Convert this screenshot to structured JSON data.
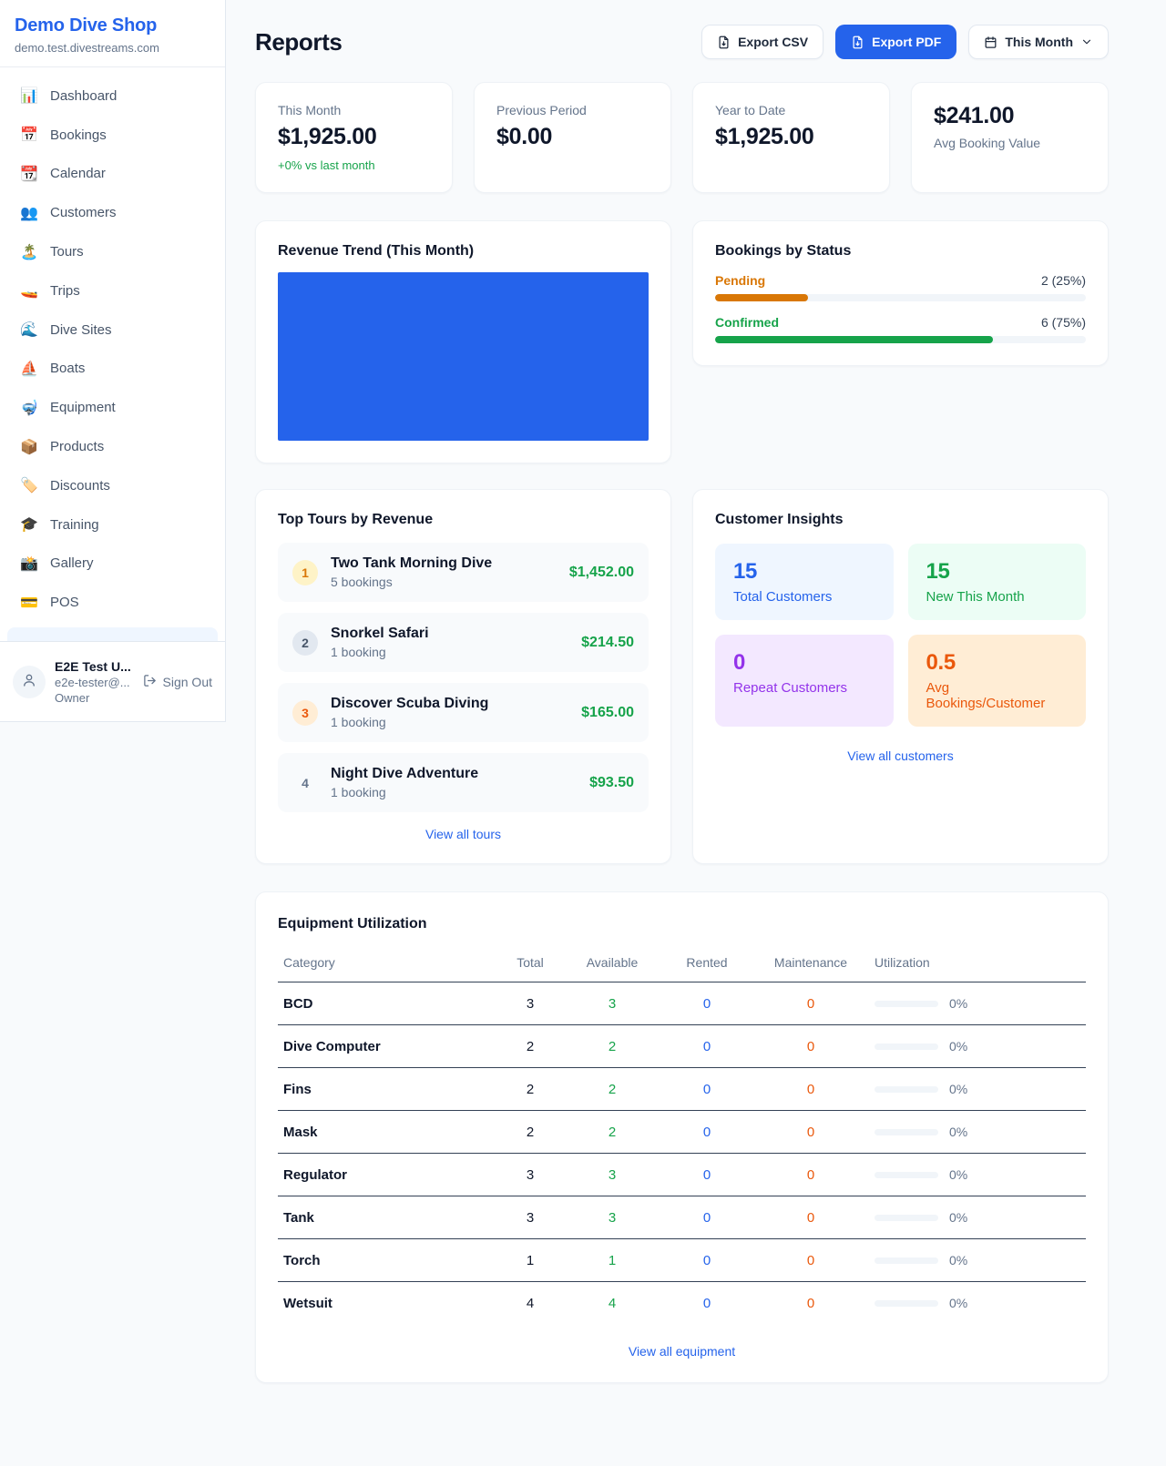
{
  "brand": {
    "name": "Demo Dive Shop",
    "domain": "demo.test.divestreams.com"
  },
  "sidebar": {
    "items": [
      {
        "label": "Dashboard",
        "icon": "📊",
        "icon_name": "bar-chart-icon"
      },
      {
        "label": "Bookings",
        "icon": "📅",
        "icon_name": "calendar-date-icon"
      },
      {
        "label": "Calendar",
        "icon": "📆",
        "icon_name": "tear-off-calendar-icon"
      },
      {
        "label": "Customers",
        "icon": "👥",
        "icon_name": "people-icon"
      },
      {
        "label": "Tours",
        "icon": "🏝️",
        "icon_name": "island-icon"
      },
      {
        "label": "Trips",
        "icon": "🚤",
        "icon_name": "speedboat-icon"
      },
      {
        "label": "Dive Sites",
        "icon": "🌊",
        "icon_name": "wave-icon"
      },
      {
        "label": "Boats",
        "icon": "⛵",
        "icon_name": "sailboat-icon"
      },
      {
        "label": "Equipment",
        "icon": "🤿",
        "icon_name": "diving-mask-icon"
      },
      {
        "label": "Products",
        "icon": "📦",
        "icon_name": "package-icon"
      },
      {
        "label": "Discounts",
        "icon": "🏷️",
        "icon_name": "tag-icon"
      },
      {
        "label": "Training",
        "icon": "🎓",
        "icon_name": "graduation-cap-icon"
      },
      {
        "label": "Gallery",
        "icon": "📸",
        "icon_name": "camera-icon"
      },
      {
        "label": "POS",
        "icon": "💳",
        "icon_name": "credit-card-icon"
      }
    ]
  },
  "user": {
    "name": "E2E Test U...",
    "email": "e2e-tester@...",
    "role": "Owner",
    "sign_out": "Sign Out"
  },
  "header": {
    "title": "Reports",
    "export_csv": "Export CSV",
    "export_pdf": "Export PDF",
    "period_selector": "This Month"
  },
  "stats": [
    {
      "label": "This Month",
      "value": "$1,925.00",
      "delta": "+0% vs last month",
      "value_first": false
    },
    {
      "label": "Previous Period",
      "value": "$0.00",
      "delta": "",
      "value_first": false
    },
    {
      "label": "Year to Date",
      "value": "$1,925.00",
      "delta": "",
      "value_first": false
    },
    {
      "label": "Avg Booking Value",
      "value": "$241.00",
      "delta": "",
      "value_first": true
    }
  ],
  "chart_data": {
    "type": "bar",
    "title": "Revenue Trend (This Month)",
    "categories": [
      "This Month"
    ],
    "series": [
      {
        "name": "Revenue",
        "values": [
          1925.0
        ]
      }
    ],
    "bar_color": "#2563eb",
    "xlabel": "",
    "ylabel": "",
    "axes_visible": false,
    "legend": false,
    "note": "single solid blue bar fills the entire plot area; no axis ticks, gridlines or labels are rendered"
  },
  "bookings_by_status": {
    "title": "Bookings by Status",
    "rows": [
      {
        "label": "Pending",
        "count": "2 (25%)",
        "pct": 25,
        "color": "#d97706"
      },
      {
        "label": "Confirmed",
        "count": "6 (75%)",
        "pct": 75,
        "color": "#16a34a"
      }
    ]
  },
  "top_tours": {
    "title": "Top Tours by Revenue",
    "view_all": "View all tours",
    "items": [
      {
        "rank": "1",
        "name": "Two Tank Morning Dive",
        "bookings": "5 bookings",
        "revenue": "$1,452.00",
        "rank_bg": "#fef3c7",
        "rank_fg": "#d97706"
      },
      {
        "rank": "2",
        "name": "Snorkel Safari",
        "bookings": "1 booking",
        "revenue": "$214.50",
        "rank_bg": "#e2e8f0",
        "rank_fg": "#475569"
      },
      {
        "rank": "3",
        "name": "Discover Scuba Diving",
        "bookings": "1 booking",
        "revenue": "$165.00",
        "rank_bg": "#ffedd5",
        "rank_fg": "#ea580c"
      },
      {
        "rank": "4",
        "name": "Night Dive Adventure",
        "bookings": "1 booking",
        "revenue": "$93.50",
        "rank_bg": "transparent",
        "rank_fg": "#64748b"
      }
    ]
  },
  "customer_insights": {
    "title": "Customer Insights",
    "view_all": "View all customers",
    "tiles": [
      {
        "value": "15",
        "label": "Total Customers",
        "bg": "#eff6ff",
        "fg": "#2563eb"
      },
      {
        "value": "15",
        "label": "New This Month",
        "bg": "#ecfdf5",
        "fg": "#16a34a"
      },
      {
        "value": "0",
        "label": "Repeat Customers",
        "bg": "#f3e8ff",
        "fg": "#9333ea"
      },
      {
        "value": "0.5",
        "label": "Avg Bookings/Customer",
        "bg": "#ffedd5",
        "fg": "#ea580c"
      }
    ]
  },
  "equipment": {
    "title": "Equipment Utilization",
    "view_all": "View all equipment",
    "columns": [
      "Category",
      "Total",
      "Available",
      "Rented",
      "Maintenance",
      "Utilization"
    ],
    "rows": [
      {
        "category": "BCD",
        "total": "3",
        "available": "3",
        "rented": "0",
        "maintenance": "0",
        "utilization": "0%",
        "utilization_pct": 0
      },
      {
        "category": "Dive Computer",
        "total": "2",
        "available": "2",
        "rented": "0",
        "maintenance": "0",
        "utilization": "0%",
        "utilization_pct": 0
      },
      {
        "category": "Fins",
        "total": "2",
        "available": "2",
        "rented": "0",
        "maintenance": "0",
        "utilization": "0%",
        "utilization_pct": 0
      },
      {
        "category": "Mask",
        "total": "2",
        "available": "2",
        "rented": "0",
        "maintenance": "0",
        "utilization": "0%",
        "utilization_pct": 0
      },
      {
        "category": "Regulator",
        "total": "3",
        "available": "3",
        "rented": "0",
        "maintenance": "0",
        "utilization": "0%",
        "utilization_pct": 0
      },
      {
        "category": "Tank",
        "total": "3",
        "available": "3",
        "rented": "0",
        "maintenance": "0",
        "utilization": "0%",
        "utilization_pct": 0
      },
      {
        "category": "Torch",
        "total": "1",
        "available": "1",
        "rented": "0",
        "maintenance": "0",
        "utilization": "0%",
        "utilization_pct": 0
      },
      {
        "category": "Wetsuit",
        "total": "4",
        "available": "4",
        "rented": "0",
        "maintenance": "0",
        "utilization": "0%",
        "utilization_pct": 0
      }
    ]
  },
  "colors": {
    "primary": "#2563eb",
    "green": "#16a34a",
    "orange": "#ea580c",
    "amber": "#d97706"
  }
}
